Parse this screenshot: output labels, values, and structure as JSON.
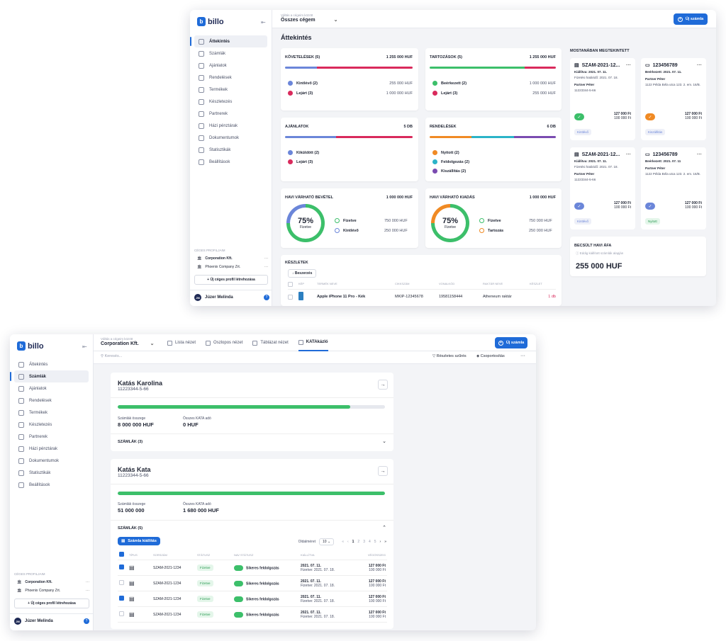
{
  "logo": "billo",
  "company_selector": {
    "label": "Váltás a cégeim között",
    "all": "Összes cégem",
    "corp": "Corporation Kft."
  },
  "new_invoice": "Új számla",
  "nav": [
    "Áttekintés",
    "Számlák",
    "Ajánlatok",
    "Rendelések",
    "Termékek",
    "Készletezés",
    "Partnerek",
    "Házi pénztárak",
    "Dokumentumok",
    "Statisztikák",
    "Beállítások"
  ],
  "profiles": {
    "title": "CÉGES PROFILJAIM",
    "items": [
      "Corporation Kft.",
      "Phoenix Company Zrt."
    ],
    "new": "+ Új céges profil létrehozása"
  },
  "user": {
    "initials": "JM",
    "name": "Júzer Melinda",
    "help": "?"
  },
  "overview": {
    "title": "Áttekintés",
    "receivables": {
      "title": "Követelések (5)",
      "total": "1 255 000 HUF",
      "items": [
        {
          "label": "Kintlévő (2)",
          "amount": "255 000 HUF",
          "color": "#6b86d9"
        },
        {
          "label": "Lejárt (3)",
          "amount": "1 000 000 HUF",
          "color": "#d92a5c"
        }
      ]
    },
    "debts": {
      "title": "Tartozások (5)",
      "total": "1 255 000 HUF",
      "items": [
        {
          "label": "Beérkezett (2)",
          "amount": "1 000 000 HUF",
          "color": "#3cbf6a"
        },
        {
          "label": "Lejárt (3)",
          "amount": "255 000 HUF",
          "color": "#d92a5c"
        }
      ]
    },
    "offers": {
      "title": "Ajánlatok",
      "total": "5 DB",
      "items": [
        {
          "label": "Kiküldött (2)",
          "color": "#6b86d9"
        },
        {
          "label": "Lejárt (3)",
          "color": "#d92a5c"
        }
      ]
    },
    "orders": {
      "title": "Rendelések",
      "total": "6 DB",
      "items": [
        {
          "label": "Nyitott (2)",
          "color": "#f08a24"
        },
        {
          "label": "Feldolgozás (2)",
          "color": "#2bb3c8"
        },
        {
          "label": "Kiszállítás (2)",
          "color": "#7a4bb0"
        }
      ]
    },
    "income": {
      "title": "Havi várható bevétel",
      "total": "1 000 000 HUF",
      "pct": "75%",
      "sub": "Fizetve",
      "items": [
        {
          "label": "Fizetve",
          "amount": "750 000 HUF",
          "color": "#3cbf6a"
        },
        {
          "label": "Kintlévő",
          "amount": "250 000 HUF",
          "color": "#6b86d9"
        }
      ]
    },
    "expense": {
      "title": "Havi várható kiadás",
      "total": "1 000 000 HUF",
      "pct": "75%",
      "sub": "Fizetve",
      "items": [
        {
          "label": "Fizetve",
          "amount": "750 000 HUF",
          "color": "#3cbf6a"
        },
        {
          "label": "Tartozás",
          "amount": "250 000 HUF",
          "color": "#f08a24"
        }
      ]
    },
    "stock": {
      "title": "Készletek",
      "btn": "Beszerzés",
      "cols": [
        "KÉP",
        "TERMÉK NEVE",
        "CIKKSZÁM",
        "VONALKÓD",
        "RAKTÁR NEVE",
        "KÉSZLET"
      ],
      "row": [
        "Apple iPhone 11 Pro - Kék",
        "MKIP-12345678",
        "19581158444",
        "Atheneum raktár",
        "1 db"
      ]
    },
    "recent": {
      "title": "Mostanában megtekintett",
      "cards": [
        {
          "id": "SZAM-2021-12...",
          "l1": "Kiállítva: 2021. 07. 11.",
          "l2": "Fizetési határidő: 2021. 07. 18.",
          "p": "Partner Péter",
          "p2": "11223344-5-66",
          "a1": "127 000 Ft",
          "a2": "100 000 Ft",
          "tag": "Kintlévő"
        },
        {
          "id": "123456789",
          "l1": "Beérkezett: 2021. 07. 11.",
          "l2": "",
          "p": "Partner Péter",
          "p2": "1122 Példa Béla utca 123. 2. em. 16/B.",
          "a1": "127 000 Ft",
          "a2": "100 000 Ft",
          "tag": "Kiszállítás"
        },
        {
          "id": "SZAM-2021-12...",
          "l1": "Kiállítva: 2021. 07. 11.",
          "l2": "Fizetési határidő: 2021. 07. 18.",
          "p": "Partner Péter",
          "p2": "11223344-5-66",
          "a1": "127 000 Ft",
          "a2": "100 000 Ft",
          "tag": "Kintlévő"
        },
        {
          "id": "123456789",
          "l1": "Beérkezett: 2021. 07. 11",
          "l2": "",
          "p": "Partner Péter",
          "p2": "1122 Példa Béla utca 123. 2. em. 16/B.",
          "a1": "127 000 Ft",
          "a2": "100 000 Ft",
          "tag": "Nyitott"
        }
      ]
    },
    "vat": {
      "title": "Becsült havi ÁFA",
      "note": "Eddig kiállított számlák alapján",
      "value": "255 000 HUF"
    }
  },
  "kata": {
    "tabs": [
      "Lista nézet",
      "Oszlopos nézet",
      "Táblázat nézet",
      "KATAkázló"
    ],
    "search": "Keresés...",
    "filter": "Részletes szűrés",
    "group": "Csoportosítás",
    "persons": [
      {
        "name": "Katás Karolina",
        "id": "11223344-5-66",
        "progress": 0.87,
        "l1": "Számlák összege",
        "v1": "8 000 000 HUF",
        "l2": "Összes KATA adó",
        "v2": "0 HUF",
        "sec": "SZÁMLÁK (3)"
      },
      {
        "name": "Katás Kata",
        "id": "11223344-5-66",
        "progress": 1.0,
        "l1": "Számlák összege",
        "v1": "51 000 000",
        "l2": "Összes KATA adó",
        "v2": "1 680 000 HUF",
        "sec": "SZÁMLÁK (5)"
      }
    ],
    "issue_btn": "Számla kiállítás",
    "per_page_label": "Oldalméret",
    "per_page": "10",
    "pages": [
      "1",
      "2",
      "3",
      "4",
      "5"
    ],
    "cols": [
      "TÍPUS",
      "SORSZÁM",
      "STÁTUSZ",
      "NAV STÁTUSZ",
      "KIÁLLÍTVA",
      "VÉGÖSSZEG"
    ],
    "rows": [
      {
        "checked": true,
        "num": "SZAM-2021-1234",
        "status": "Fizetve",
        "nav": "Sikeres feldolgozás",
        "date": "2021. 07. 11.",
        "due": "Fizetve: 2021. 07. 18.",
        "a1": "127 000 Ft",
        "a2": "100 000 Ft"
      },
      {
        "checked": false,
        "num": "SZAM-2021-1234",
        "status": "Fizetve",
        "nav": "Sikeres feldolgozás",
        "date": "2021. 07. 11.",
        "due": "Fizetve: 2021. 07. 18.",
        "a1": "127 000 Ft",
        "a2": "100 000 Ft"
      },
      {
        "checked": true,
        "num": "SZAM-2021-1234",
        "status": "Fizetve",
        "nav": "Sikeres feldolgozás",
        "date": "2021. 07. 11.",
        "due": "Fizetve: 2021. 07. 18.",
        "a1": "127 000 Ft",
        "a2": "100 000 Ft"
      },
      {
        "checked": false,
        "num": "SZAM-2021-1234",
        "status": "Fizetve",
        "nav": "Sikeres feldolgozás",
        "date": "2021. 07. 11.",
        "due": "Fizetve: 2021. 07. 18.",
        "a1": "127 000 Ft",
        "a2": "100 000 Ft"
      }
    ]
  }
}
